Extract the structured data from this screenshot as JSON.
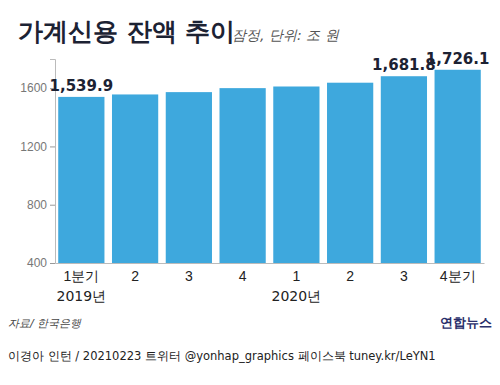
{
  "chart_data": {
    "type": "bar",
    "title": "가계신용 잔액 추이",
    "subtitle": "잠정, 단위: 조 원",
    "categories": [
      "1분기",
      "2",
      "3",
      "4",
      "1",
      "2",
      "3",
      "4분기"
    ],
    "groups": [
      {
        "label": "2019년",
        "start": 0
      },
      {
        "label": "2020년",
        "start": 4
      }
    ],
    "values": [
      1539.9,
      1556.7,
      1572.7,
      1600.1,
      1611.3,
      1637.3,
      1681.8,
      1726.1
    ],
    "value_labels": [
      "1,539.9",
      null,
      null,
      null,
      null,
      null,
      "1,681.8",
      "1,726.1"
    ],
    "data_labels": true,
    "color": "#3ea8dd",
    "ylim": [
      400,
      1800
    ],
    "yticks": [
      400,
      800,
      1200,
      1600
    ],
    "grid": false,
    "source": "자료/ 한국은행",
    "credit": "이경아 인턴 / 20210223  트위터 @yonhap_graphics  페이스북 tuney.kr/LeYN1",
    "logo": "연합뉴스"
  }
}
